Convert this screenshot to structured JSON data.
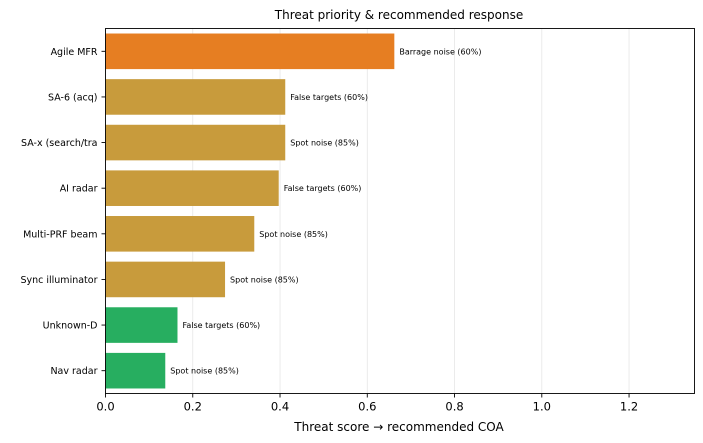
{
  "chart_data": {
    "type": "bar",
    "orientation": "horizontal",
    "title": "Threat priority & recommended response",
    "xlabel": "Threat score → recommended COA",
    "ylabel": "",
    "xlim": [
      0,
      1.35
    ],
    "xticks": [
      "0.0",
      "0.2",
      "0.4",
      "0.6",
      "0.8",
      "1.0",
      "1.2"
    ],
    "xtick_values": [
      0,
      0.2,
      0.4,
      0.6,
      0.8,
      1.0,
      1.2
    ],
    "grid": "vertical",
    "legend": "none",
    "categories": [
      "Agile MFR",
      "SA-6 (acq)",
      "SA-x (search/tra",
      "AI radar",
      "Multi-PRF beam",
      "Sync illuminator",
      "Unknown-D",
      "Nav radar"
    ],
    "values": [
      0.662,
      0.412,
      0.412,
      0.397,
      0.341,
      0.274,
      0.165,
      0.137
    ],
    "labels": [
      "Barrage noise (60%)",
      "False targets (60%)",
      "Spot noise (85%)",
      "False targets (60%)",
      "Spot noise (85%)",
      "Spot noise (85%)",
      "False targets (60%)",
      "Spot noise (85%)"
    ],
    "colors": [
      "#e67e22",
      "#c89b3c",
      "#c89b3c",
      "#c89b3c",
      "#c89b3c",
      "#c89b3c",
      "#27ae60",
      "#27ae60"
    ]
  }
}
